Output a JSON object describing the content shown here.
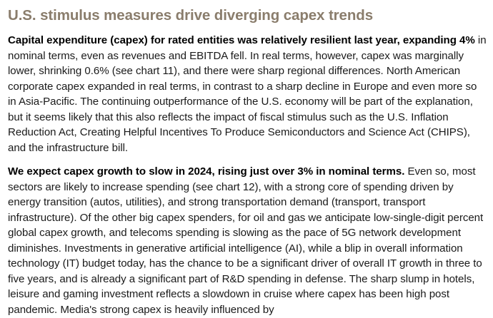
{
  "title": "U.S. stimulus measures drive diverging capex trends",
  "paragraphs": [
    {
      "lead": "Capital expenditure (capex) for rated entities was relatively resilient last year, expanding 4%",
      "body": " in nominal terms, even as revenues and EBITDA fell. In real terms, however, capex was marginally lower, shrinking 0.6% (see chart 11), and there were sharp regional differences. North American corporate capex expanded in real terms, in contrast to a sharp decline in Europe and even more so in Asia-Pacific. The continuing outperformance of the U.S. economy will be part of the explanation, but it seems likely that this also reflects the impact of fiscal stimulus such as the U.S. Inflation Reduction Act, Creating Helpful Incentives To Produce Semiconductors and Science Act (CHIPS), and the infrastructure bill."
    },
    {
      "lead": "We expect capex growth to slow in 2024, rising just over 3% in nominal terms.",
      "body": " Even so, most sectors are likely to increase spending (see chart 12), with a strong core of spending driven by energy transition (autos, utilities), and strong transportation demand (transport, transport infrastructure). Of the other big capex spenders, for oil and gas we anticipate low-single-digit percent global capex growth, and telecoms spending is slowing as the pace of 5G network development diminishes. Investments in generative artificial intelligence (AI), while a blip in overall information technology (IT) budget today, has the chance to be a significant driver of overall IT growth in three to five years, and is already a significant part of R&D spending in defense. The sharp slump in hotels, leisure and gaming investment reflects a slowdown in cruise where capex has been high post pandemic. Media's strong capex is heavily influenced by"
    }
  ]
}
